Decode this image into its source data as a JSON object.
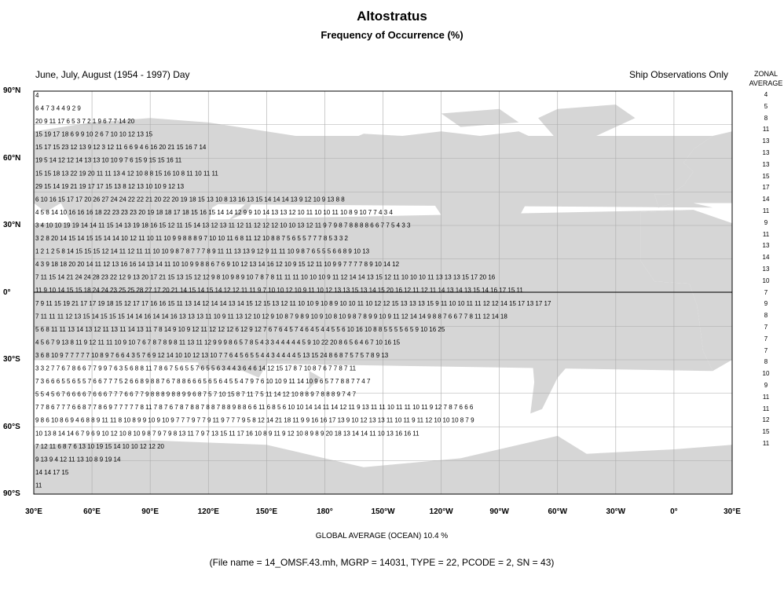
{
  "title": "Altostratus",
  "subtitle": "Frequency of Occurrence (%)",
  "season": "June, July, August (1954 - 1997) Day",
  "source_note": "Ship Observations Only",
  "zonal_header": [
    "ZONAL",
    "AVERAGE"
  ],
  "lat_labels": [
    "90°N",
    "60°N",
    "30°N",
    "0°",
    "30°S",
    "60°S",
    "90°S"
  ],
  "lon_labels": [
    "30°E",
    "60°E",
    "90°E",
    "120°E",
    "150°E",
    "180°",
    "150°W",
    "120°W",
    "90°W",
    "60°W",
    "30°W",
    "0°",
    "30°E"
  ],
  "zonal_average": [
    "4",
    "5",
    "8",
    "11",
    "13",
    "13",
    "13",
    "15",
    "17",
    "14",
    "11",
    "9",
    "11",
    "13",
    "14",
    "13",
    "10",
    "7",
    "9",
    "8",
    "7",
    "7",
    "7",
    "8",
    "10",
    "9",
    "11",
    "11",
    "12",
    "15",
    "11"
  ],
  "global_average": "GLOBAL AVERAGE (OCEAN)   10.4 %",
  "file_info": "(File name = 14_OMSF.43.mh, MGRP = 14031, TYPE = 22, PCODE = 2, SN = 43)",
  "colors": {
    "land": "#d6d6d6",
    "grid": "#aaaaaa",
    "equator": "#000000",
    "frame": "#000000"
  },
  "grid_rows": [
    "                                                                                    4       ",
    "      6        4         7          3         4         4         9          2        9     ",
    "20   9    11     17    6          5       3      7      2       1     9     6     7            7     14  20",
    "15    19       17          18       6        9      9       10                 2      6      7    10     10       12       13   15",
    "15  17  15  23                                12  13   9  12       3     12  11  6   6  9  4  6  16   20  21  15  16  7  14",
    "19  5                                   14  12  12  14  13  13  10          10  9  7  6  15  9  15  15  16  11",
    "                         15  15       18  13  22  19  20  11  11  13       4  12  10  8  8  15  16  10  8  11  10  11  11",
    "                         29  15       14  19  21  19  17  17  15  13  8         12  13  10  10  9  12  13",
    "6 10                     16 15 17 17 20 26 27 24 24 22 22 21 20 22 20 19 18 15 13 10 8       13 16 13 15 14 14 14 13 9 12 10 9 13  8  8",
    "4 5 8 14 10              16 16 16 18 22 23 23 23 20 19 18 18 17 18 15 16 15 14 14 12 9 9    10 14 13 13 12 10 11 10 10 11 10 8 9 10 7 7 4 3 4",
    "3 4  10 10        19 19 14 14 11 15 14 13 19 18 16 15 12 11 15 14 13 12 13 11 12 11 12 12 12 10   10 13 12 11 9 7 9 8 7 8 8 8 8 6 6 7 7 5 4 3 3",
    "3 2               8 20 14 15 14 15 15 14 14 10 12 11 10 11 10 9 9 8 8 8 9 7 10 10 11 6   8 11 12 10 8 8 7 5 6 5 5 7 7 7 8   5 3 3 2",
    "1 2 1 2 5 8       14 15 15 15 12 14 11 12 11 11 10 10 9 8 7 8 7 7 7 8 9 11 11 13 13 9 12  9 11 11 10 9 8 7 6 5 5 5 6 6 8 9 10 13",
    "4  3 9 18 18 20  20 14  11 12 13 16 16 14 13 14 11 10 10 9 9 8 8 6 7 6 9 10 12 13 14 16 12 10 9  15 12 11 10 9 9 7 7 7 7 8 9 10 14 12",
    "7 11  15 14 21 24 24 28 23 22 12  9 13 20 17 21 15 13 15 12 12 9 8 10 9 8 9 10 7 8 7 8 11 11 11 10 10 10 9 11 12 14 14 13 15 12 11 10 10 10 11 13 13 13 15 17 20 16",
    "11 9 10 14 15 15 18 24 24 23 25 25 28 27 17 20 21 14 15 14 15 14 12 12 11 11 9 7 10 10 12 10 9 11 10 12 13 13 15 13 14 15 20 16 12 11 12 11 14 13 14 13 15 14 16 17 15 11",
    "7 9 11 15 19 21 17 17 19 18 15 12 17 17 16 16 15 11 13 14 12 14 14 13 14 15 12 15 13 12 11 10 10 9 10 8 9 10 10 11 10 12 12 15 13 13 13 15  9 11 10 10 11 11 12 12 14 15 17 13 17 17",
    "7 11 11 11 12 13 15 14 15 15 15 14 14 16 14 14 16 13 13 13 11 10 9 11 13 12 10 12 9 10 8 7 9 8 9 10 9 10 8 10 9 8 7 8 9 9 10 9 11 12 14 14  9 8 8 7 6 6 7 7 8 11 12 14 18",
    "5 6 8 11 11 13 14 13 12 11 13 11 14 13 11 7 8 14 9 10 9 12 11 12 12 12 6 12 9 12 7 6 7 6 4 5 7 4 6 4 5 4 4 5 5 6 10 16  10 8 8 5 5 5 5 6 5 9 10 16 25",
    "4 5 6 7 9 13 8 11 9 12 11 11 10 9 10 7 6 7 8 7 8 9 8 11 13 11 12 9 9 9 8 6 5 7 8 5 4 3 3 4 4 4 4 4 5 9 10 22 20  8 6 5 6 4 6 7 10 16 15",
    "3 6 8 10 9 7 7 7 7 7 10 8 9 7 6 6 4 3 5 7 6 9 12 14 10 10 12 13 10 7 7 6 4 5 6 5 5 4 4 3 4 4 4 4 5 13 15 24  8 6 8 7 5 7 5 7 8 9 13",
    "3 3 2 7 7 6 7 8 6 6 7 7 9 9 7 6 3 5 6 8 8 11 7 8 6 7 5 6 5 5 7 6 5 5 6 3 4 4 3 6 4 6 14 12 15 17  8 7 10 8 7 6 7 7 8 7 11",
    "7 3 6 6 6 5 5 6 5 5 7 6 6 7 7 7 5 2 6 6 8 9 8 8 7 6 7 8 8 6 6 6 5 6 5 6 4 5 5 4 7 9 7 6 10 10 9 11  14 10 9 6 5 7 7 8 8 7 7 4 7",
    "5 5 4 5 6 7 6 6 6 6 7 6 6 6 7 7 7 6 6 7 7 9 8 8 8 9 8 8 9 9 6 8 7 5 7 10 15 8 7 11 7 5 11  14 12 10 8 8 9 7 8 8 8 9 7 4 7",
    "7 7 8 6 7 7 7 6 6 8 7 7 8 6 9 7 7 7 7 7 8 11 7 8 7 6 7 8 7 8 8 7 8 8 7 8 8 9 8 8 6 6 11 6 8 5 6 10 10 14 14 11 14 12 11  9 13 11 11 10 11 11 10 11 9 12 7 8 7 6 6 6",
    "9 8 6 10 8 6 9 4 6 8 8 9 11 11 8 10 8 9 9 10 9 10 9 7 7 7 9 7 7 9 11 9 7 7 7 9 5 8 12 14  21 18  11 9 9 16  16 17 13 9 10 12 13 13 11 10 11 9 11 12 10 10 10 8 7 9",
    "10 13 8 14 14 6 7   9 6 9 10 12 10 8 10 9 8 7 9 7 9 8 13 11 7 9 7 13 15 11 17 16 10 8 9 11 9 12 10 8 9 8 9 20 18 13 14 14 11 10 13 16 16 11",
    "7 12          11 6 8 7       6 13              10 19 15 14 10 10 12 12 20",
    "9   13 9              4 12             11   13 10   8 9 19 14",
    "                                              14 14 17  15",
    "11"
  ]
}
